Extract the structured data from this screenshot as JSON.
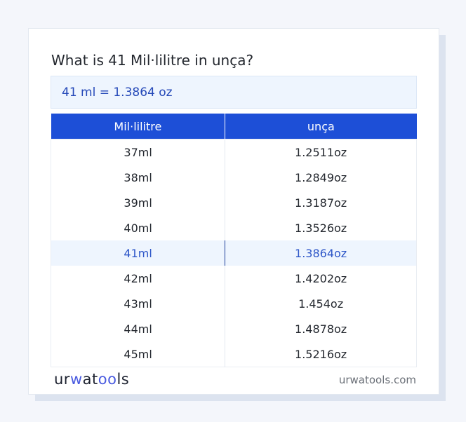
{
  "title": "What is 41 Mil·lilitre in unça?",
  "result": "41 ml = 1.3864 oz",
  "table": {
    "headers": [
      "Mil·lilitre",
      "unça"
    ],
    "rows": [
      [
        "37ml",
        "1.2511oz"
      ],
      [
        "38ml",
        "1.2849oz"
      ],
      [
        "39ml",
        "1.3187oz"
      ],
      [
        "40ml",
        "1.3526oz"
      ],
      [
        "41ml",
        "1.3864oz"
      ],
      [
        "42ml",
        "1.4202oz"
      ],
      [
        "43ml",
        "1.454oz"
      ],
      [
        "44ml",
        "1.4878oz"
      ],
      [
        "45ml",
        "1.5216oz"
      ]
    ],
    "highlighted_row": 4
  },
  "footer": {
    "logo": "urwatools",
    "site": "urwatools.com"
  },
  "colors": {
    "accent": "#1d4fd7",
    "highlight_bg": "#eef5fe",
    "highlight_text": "#2d56c8"
  }
}
